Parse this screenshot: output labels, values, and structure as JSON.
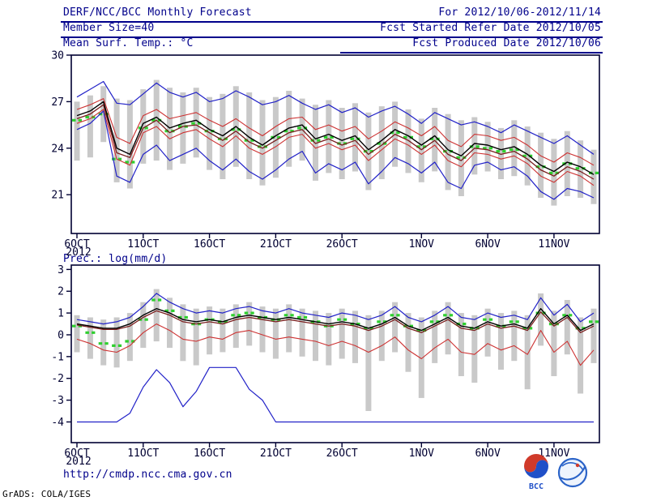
{
  "header": {
    "title": "DERF/NCC/BCC Monthly Forecast",
    "member_size": "Member Size=40",
    "for_range": "For 2012/10/06-2012/11/14",
    "fcst_started": "Fcst Started Refer Date 2012/10/05",
    "fcst_produced": "Fcst Produced Date 2012/10/06"
  },
  "footer": {
    "url": "http://cmdp.ncc.cma.gov.cn",
    "logo1_label": "BCC",
    "stamp": "GrADS: COLA/IGES"
  },
  "colors": {
    "header_text": "#00008b",
    "divider": "#00008b",
    "axis": "#000032",
    "ensemble_spread_bar": "#c9c9c9",
    "observation_green": "#2fcf2f",
    "envelope_blue": "#2222c8",
    "quartile_red": "#cd3232",
    "mean_black": "#000000",
    "control_darkred": "#7a1e1e"
  },
  "chart_data": [
    {
      "id": "temperature",
      "type": "line",
      "title": "Mean Surf. Temp.: °C",
      "ylim": [
        18.5,
        30.0
      ],
      "yticks": [
        21,
        24,
        27,
        30
      ],
      "x_ticks": [
        {
          "day": 1,
          "label": "6OCT",
          "sub": "2012"
        },
        {
          "day": 6,
          "label": "11OCT"
        },
        {
          "day": 11,
          "label": "16OCT"
        },
        {
          "day": 16,
          "label": "21OCT"
        },
        {
          "day": 21,
          "label": "26OCT"
        },
        {
          "day": 27,
          "label": "1NOV"
        },
        {
          "day": 32,
          "label": "6NOV"
        },
        {
          "day": 37,
          "label": "11NOV"
        }
      ],
      "series": [
        {
          "name": "ens-max",
          "color": "#2222c8",
          "width": 1.2,
          "values": [
            27.3,
            27.8,
            28.3,
            26.9,
            26.8,
            27.5,
            28.2,
            27.6,
            27.3,
            27.6,
            27.0,
            27.2,
            27.7,
            27.3,
            26.8,
            27.0,
            27.4,
            26.9,
            26.5,
            26.8,
            26.3,
            26.6,
            26.0,
            26.4,
            26.7,
            26.2,
            25.6,
            26.3,
            25.9,
            25.5,
            25.7,
            25.4,
            25.0,
            25.5,
            25.1,
            24.7,
            24.3,
            24.8,
            24.2,
            23.6
          ]
        },
        {
          "name": "upper-quartile",
          "color": "#cd3232",
          "width": 1.1,
          "values": [
            26.5,
            26.8,
            27.2,
            24.7,
            24.3,
            26.1,
            26.5,
            25.9,
            26.1,
            26.3,
            25.8,
            25.4,
            25.9,
            25.3,
            24.8,
            25.4,
            25.9,
            26.0,
            25.2,
            25.5,
            25.1,
            25.4,
            24.6,
            25.1,
            25.7,
            25.3,
            24.8,
            25.4,
            24.5,
            24.1,
            24.9,
            24.8,
            24.5,
            24.7,
            24.2,
            23.5,
            23.1,
            23.7,
            23.4,
            22.9
          ]
        },
        {
          "name": "control",
          "color": "#7a1e1e",
          "width": 1.3,
          "values": [
            25.9,
            26.2,
            26.8,
            23.7,
            23.4,
            25.3,
            25.8,
            25.0,
            25.4,
            25.5,
            25.0,
            24.5,
            25.1,
            24.4,
            24.0,
            24.5,
            25.0,
            25.2,
            24.3,
            24.6,
            24.2,
            24.5,
            23.6,
            24.2,
            24.9,
            24.5,
            23.9,
            24.5,
            23.6,
            23.2,
            24.0,
            23.9,
            23.6,
            23.8,
            23.3,
            22.6,
            22.2,
            22.8,
            22.5,
            22.0
          ]
        },
        {
          "name": "lower-quartile",
          "color": "#cd3232",
          "width": 1.1,
          "values": [
            25.6,
            25.9,
            26.5,
            23.3,
            22.9,
            25.0,
            25.4,
            24.6,
            25.0,
            25.2,
            24.6,
            24.1,
            24.8,
            24.0,
            23.6,
            24.1,
            24.7,
            24.9,
            24.0,
            24.3,
            23.9,
            24.2,
            23.2,
            23.9,
            24.6,
            24.2,
            23.6,
            24.2,
            23.2,
            22.8,
            23.7,
            23.6,
            23.3,
            23.5,
            23.0,
            22.2,
            21.8,
            22.5,
            22.2,
            21.6
          ]
        },
        {
          "name": "ens-min",
          "color": "#2222c8",
          "width": 1.2,
          "values": [
            25.2,
            25.6,
            26.4,
            22.2,
            21.8,
            23.6,
            24.2,
            23.2,
            23.6,
            24.0,
            23.2,
            22.6,
            23.3,
            22.5,
            22.0,
            22.6,
            23.3,
            23.8,
            22.4,
            23.0,
            22.6,
            23.1,
            21.7,
            22.5,
            23.4,
            23.0,
            22.4,
            23.1,
            21.8,
            21.4,
            22.9,
            23.1,
            22.6,
            22.8,
            22.2,
            21.2,
            20.7,
            21.4,
            21.2,
            20.8
          ]
        },
        {
          "name": "ens-mean",
          "color": "#000000",
          "width": 1.4,
          "values": [
            26.1,
            26.4,
            27.0,
            24.0,
            23.6,
            25.6,
            26.0,
            25.3,
            25.6,
            25.8,
            25.2,
            24.8,
            25.4,
            24.7,
            24.2,
            24.8,
            25.3,
            25.5,
            24.6,
            24.9,
            24.5,
            24.8,
            23.9,
            24.5,
            25.2,
            24.8,
            24.2,
            24.8,
            23.9,
            23.5,
            24.3,
            24.2,
            23.9,
            24.1,
            23.6,
            22.9,
            22.5,
            23.1,
            22.8,
            22.3
          ]
        }
      ],
      "obs": {
        "name": "observation",
        "color": "#2fcf2f",
        "values": [
          25.8,
          26.0,
          26.2,
          23.3,
          23.1,
          25.3,
          25.8,
          25.1,
          25.4,
          25.6,
          25.1,
          24.6,
          25.2,
          24.5,
          24.1,
          24.7,
          25.1,
          25.3,
          24.5,
          24.7,
          24.3,
          24.6,
          23.8,
          24.3,
          25.0,
          24.7,
          24.1,
          24.6,
          23.8,
          23.4,
          24.1,
          24.0,
          23.8,
          23.9,
          23.5,
          22.8,
          22.4,
          23.0,
          22.7,
          22.4
        ]
      },
      "bars": {
        "color": "#c9c9c9",
        "low": [
          23.2,
          23.4,
          24.4,
          21.8,
          21.4,
          23.0,
          23.2,
          22.6,
          23.0,
          23.4,
          22.6,
          22.0,
          22.8,
          22.0,
          21.6,
          22.1,
          22.8,
          23.2,
          21.9,
          22.4,
          22.0,
          22.5,
          21.3,
          22.0,
          22.8,
          22.4,
          21.8,
          22.5,
          21.3,
          20.9,
          22.3,
          22.5,
          22.0,
          22.2,
          21.6,
          20.8,
          20.3,
          20.9,
          20.8,
          20.4
        ],
        "high": [
          27.0,
          27.4,
          28.0,
          27.2,
          27.1,
          27.8,
          28.4,
          27.9,
          27.6,
          27.9,
          27.3,
          27.5,
          28.0,
          27.6,
          27.1,
          27.3,
          27.7,
          27.2,
          26.8,
          27.1,
          26.6,
          26.9,
          26.3,
          26.7,
          27.0,
          26.5,
          25.9,
          26.6,
          26.2,
          25.8,
          26.0,
          25.7,
          25.3,
          25.8,
          25.4,
          25.0,
          24.6,
          25.1,
          24.5,
          23.9
        ]
      }
    },
    {
      "id": "precipitation",
      "type": "line",
      "title": "Prec.: log(mm/d)",
      "ylim": [
        -4.95,
        3.2
      ],
      "yticks": [
        -4,
        -3,
        -2,
        -1,
        0,
        1,
        2,
        3
      ],
      "x_ticks": [
        {
          "day": 1,
          "label": "6OCT",
          "sub": "2012"
        },
        {
          "day": 6,
          "label": "11OCT"
        },
        {
          "day": 11,
          "label": "16OCT"
        },
        {
          "day": 16,
          "label": "21OCT"
        },
        {
          "day": 21,
          "label": "26OCT"
        },
        {
          "day": 27,
          "label": "1NOV"
        },
        {
          "day": 32,
          "label": "6NOV"
        },
        {
          "day": 37,
          "label": "11NOV"
        }
      ],
      "series": [
        {
          "name": "ens-max",
          "color": "#2222c8",
          "width": 1.2,
          "values": [
            0.7,
            0.6,
            0.5,
            0.6,
            0.8,
            1.3,
            1.9,
            1.5,
            1.2,
            1.0,
            1.1,
            1.0,
            1.2,
            1.3,
            1.1,
            1.0,
            1.2,
            1.0,
            0.9,
            0.8,
            1.0,
            0.9,
            0.7,
            0.9,
            1.3,
            0.8,
            0.6,
            0.9,
            1.3,
            0.8,
            0.7,
            1.0,
            0.8,
            0.9,
            0.7,
            1.7,
            0.9,
            1.4,
            0.6,
            1.0
          ]
        },
        {
          "name": "control",
          "color": "#7a1e1e",
          "width": 1.3,
          "values": [
            0.45,
            0.35,
            0.25,
            0.25,
            0.4,
            0.8,
            1.1,
            0.9,
            0.6,
            0.5,
            0.6,
            0.5,
            0.7,
            0.8,
            0.7,
            0.6,
            0.7,
            0.6,
            0.5,
            0.4,
            0.5,
            0.4,
            0.2,
            0.4,
            0.7,
            0.3,
            0.1,
            0.4,
            0.7,
            0.3,
            0.2,
            0.5,
            0.3,
            0.4,
            0.2,
            1.05,
            0.4,
            0.8,
            0.1,
            0.4
          ]
        },
        {
          "name": "lower-quartile",
          "color": "#cd3232",
          "width": 1.1,
          "values": [
            -0.2,
            -0.4,
            -0.7,
            -0.8,
            -0.5,
            0.1,
            0.5,
            0.2,
            -0.2,
            -0.3,
            -0.1,
            -0.2,
            0.1,
            0.2,
            0.0,
            -0.2,
            -0.1,
            -0.2,
            -0.3,
            -0.5,
            -0.3,
            -0.5,
            -0.8,
            -0.5,
            -0.1,
            -0.7,
            -1.1,
            -0.6,
            -0.2,
            -0.8,
            -0.9,
            -0.4,
            -0.7,
            -0.5,
            -0.9,
            0.2,
            -0.8,
            -0.3,
            -1.4,
            -0.7
          ]
        },
        {
          "name": "ens-min",
          "color": "#2222c8",
          "width": 1.2,
          "values": [
            -4,
            -4,
            -4,
            -4,
            -3.6,
            -2.4,
            -1.6,
            -2.2,
            -3.3,
            -2.6,
            -1.5,
            -1.5,
            -1.5,
            -2.5,
            -3.0,
            -4,
            -4,
            -4,
            -4,
            -4,
            -4,
            -4,
            -4,
            -4,
            -4,
            -4,
            -4,
            -4,
            -4,
            -4,
            -4,
            -4,
            -4,
            -4,
            -4,
            -4,
            -4,
            -4,
            -4,
            -4
          ]
        },
        {
          "name": "ens-mean",
          "color": "#000000",
          "width": 1.4,
          "values": [
            0.5,
            0.4,
            0.3,
            0.3,
            0.5,
            0.9,
            1.2,
            1.0,
            0.7,
            0.6,
            0.7,
            0.6,
            0.8,
            0.9,
            0.8,
            0.7,
            0.8,
            0.7,
            0.6,
            0.5,
            0.6,
            0.5,
            0.3,
            0.5,
            0.8,
            0.4,
            0.2,
            0.5,
            0.8,
            0.4,
            0.3,
            0.6,
            0.4,
            0.5,
            0.3,
            1.2,
            0.5,
            0.9,
            0.2,
            0.5
          ]
        }
      ],
      "obs": {
        "name": "observation",
        "color": "#2fcf2f",
        "values": [
          0.4,
          0.1,
          -0.4,
          -0.5,
          -0.3,
          0.7,
          1.6,
          1.1,
          0.8,
          0.5,
          0.7,
          0.6,
          0.9,
          1.0,
          0.8,
          0.7,
          0.9,
          0.8,
          0.6,
          0.4,
          0.7,
          0.5,
          0.3,
          0.6,
          0.9,
          0.4,
          0.2,
          0.6,
          0.9,
          0.5,
          0.3,
          0.7,
          0.4,
          0.6,
          0.3,
          1.0,
          0.5,
          0.9,
          0.3,
          0.6
        ]
      },
      "bars": {
        "color": "#c9c9c9",
        "low": [
          -0.8,
          -1.1,
          -1.4,
          -1.5,
          -1.2,
          -0.6,
          -0.3,
          -0.6,
          -1.2,
          -1.4,
          -0.9,
          -0.8,
          -0.6,
          -0.5,
          -0.8,
          -1.1,
          -0.8,
          -1.0,
          -1.2,
          -1.4,
          -1.1,
          -1.3,
          -3.5,
          -1.2,
          -0.8,
          -1.7,
          -2.9,
          -1.3,
          -0.9,
          -1.9,
          -2.2,
          -1.0,
          -1.6,
          -1.2,
          -2.5,
          -0.5,
          -1.9,
          -0.9,
          -2.7,
          -1.3
        ],
        "high": [
          0.9,
          0.8,
          0.7,
          0.8,
          1.0,
          1.5,
          2.1,
          1.7,
          1.4,
          1.2,
          1.3,
          1.2,
          1.4,
          1.5,
          1.3,
          1.2,
          1.4,
          1.2,
          1.1,
          1.0,
          1.2,
          1.1,
          0.9,
          1.1,
          1.5,
          1.0,
          0.8,
          1.1,
          1.5,
          1.0,
          0.9,
          1.2,
          1.0,
          1.1,
          0.9,
          1.9,
          1.1,
          1.6,
          0.8,
          1.2
        ]
      }
    }
  ]
}
